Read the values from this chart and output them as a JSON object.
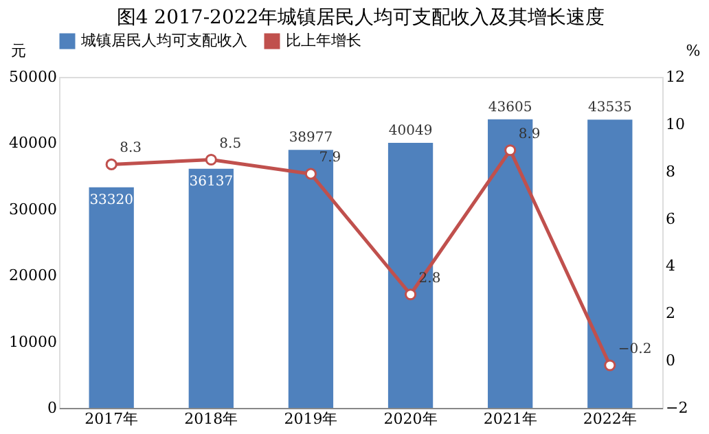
{
  "chart_data": {
    "type": "bar",
    "title": "图4  2017-2022年城镇居民人均可支配收入及其增长速度",
    "categories": [
      "2017年",
      "2018年",
      "2019年",
      "2020年",
      "2021年",
      "2022年"
    ],
    "series": [
      {
        "name": "城镇居民人均可支配收入",
        "color": "#4f81bd",
        "values": [
          33320,
          36137,
          38977,
          40049,
          43605,
          43535
        ]
      },
      {
        "name": "比上年增长",
        "type": "line",
        "axis": "y2",
        "color": "#c0504d",
        "marker": "circle",
        "values": [
          8.3,
          8.5,
          7.9,
          2.8,
          8.9,
          -0.2
        ]
      }
    ],
    "ylabel": "元",
    "y2label": "%",
    "ylim": [
      0,
      50000
    ],
    "yticks": [
      0,
      10000,
      20000,
      30000,
      40000,
      50000
    ],
    "y2lim": [
      -2,
      12
    ],
    "y2ticks": [
      -2,
      0,
      2,
      4,
      6,
      8,
      10,
      12
    ],
    "data_labels": true,
    "grid": false,
    "legend": "top"
  }
}
